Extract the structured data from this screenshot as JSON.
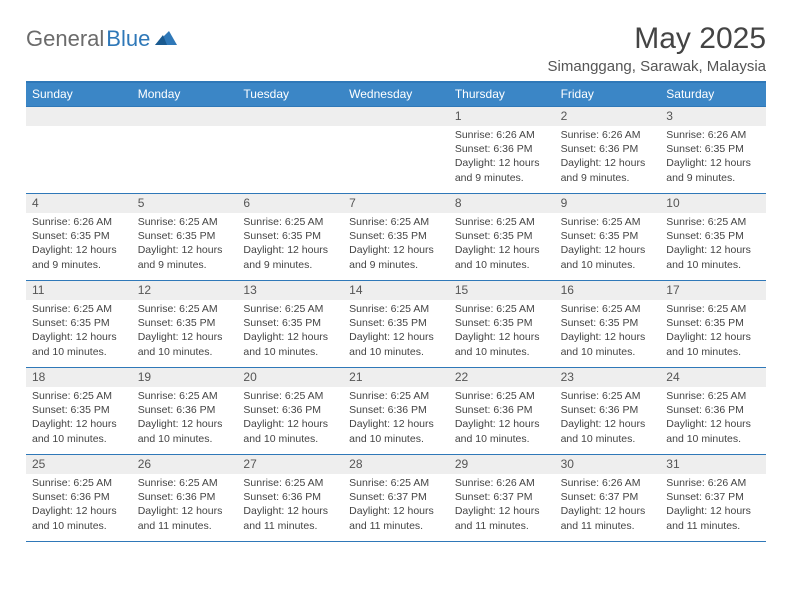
{
  "logo": {
    "part1": "General",
    "part2": "Blue"
  },
  "title": "May 2025",
  "location": "Simanggang, Sarawak, Malaysia",
  "colors": {
    "header_bg": "#3b86c6",
    "border": "#2f78b8",
    "daynum_bg": "#eeeeee",
    "text": "#444444"
  },
  "weekdays": [
    "Sunday",
    "Monday",
    "Tuesday",
    "Wednesday",
    "Thursday",
    "Friday",
    "Saturday"
  ],
  "weeks": [
    [
      {
        "num": "",
        "sunrise": "",
        "sunset": "",
        "daylight": ""
      },
      {
        "num": "",
        "sunrise": "",
        "sunset": "",
        "daylight": ""
      },
      {
        "num": "",
        "sunrise": "",
        "sunset": "",
        "daylight": ""
      },
      {
        "num": "",
        "sunrise": "",
        "sunset": "",
        "daylight": ""
      },
      {
        "num": "1",
        "sunrise": "Sunrise: 6:26 AM",
        "sunset": "Sunset: 6:36 PM",
        "daylight": "Daylight: 12 hours and 9 minutes."
      },
      {
        "num": "2",
        "sunrise": "Sunrise: 6:26 AM",
        "sunset": "Sunset: 6:36 PM",
        "daylight": "Daylight: 12 hours and 9 minutes."
      },
      {
        "num": "3",
        "sunrise": "Sunrise: 6:26 AM",
        "sunset": "Sunset: 6:35 PM",
        "daylight": "Daylight: 12 hours and 9 minutes."
      }
    ],
    [
      {
        "num": "4",
        "sunrise": "Sunrise: 6:26 AM",
        "sunset": "Sunset: 6:35 PM",
        "daylight": "Daylight: 12 hours and 9 minutes."
      },
      {
        "num": "5",
        "sunrise": "Sunrise: 6:25 AM",
        "sunset": "Sunset: 6:35 PM",
        "daylight": "Daylight: 12 hours and 9 minutes."
      },
      {
        "num": "6",
        "sunrise": "Sunrise: 6:25 AM",
        "sunset": "Sunset: 6:35 PM",
        "daylight": "Daylight: 12 hours and 9 minutes."
      },
      {
        "num": "7",
        "sunrise": "Sunrise: 6:25 AM",
        "sunset": "Sunset: 6:35 PM",
        "daylight": "Daylight: 12 hours and 9 minutes."
      },
      {
        "num": "8",
        "sunrise": "Sunrise: 6:25 AM",
        "sunset": "Sunset: 6:35 PM",
        "daylight": "Daylight: 12 hours and 10 minutes."
      },
      {
        "num": "9",
        "sunrise": "Sunrise: 6:25 AM",
        "sunset": "Sunset: 6:35 PM",
        "daylight": "Daylight: 12 hours and 10 minutes."
      },
      {
        "num": "10",
        "sunrise": "Sunrise: 6:25 AM",
        "sunset": "Sunset: 6:35 PM",
        "daylight": "Daylight: 12 hours and 10 minutes."
      }
    ],
    [
      {
        "num": "11",
        "sunrise": "Sunrise: 6:25 AM",
        "sunset": "Sunset: 6:35 PM",
        "daylight": "Daylight: 12 hours and 10 minutes."
      },
      {
        "num": "12",
        "sunrise": "Sunrise: 6:25 AM",
        "sunset": "Sunset: 6:35 PM",
        "daylight": "Daylight: 12 hours and 10 minutes."
      },
      {
        "num": "13",
        "sunrise": "Sunrise: 6:25 AM",
        "sunset": "Sunset: 6:35 PM",
        "daylight": "Daylight: 12 hours and 10 minutes."
      },
      {
        "num": "14",
        "sunrise": "Sunrise: 6:25 AM",
        "sunset": "Sunset: 6:35 PM",
        "daylight": "Daylight: 12 hours and 10 minutes."
      },
      {
        "num": "15",
        "sunrise": "Sunrise: 6:25 AM",
        "sunset": "Sunset: 6:35 PM",
        "daylight": "Daylight: 12 hours and 10 minutes."
      },
      {
        "num": "16",
        "sunrise": "Sunrise: 6:25 AM",
        "sunset": "Sunset: 6:35 PM",
        "daylight": "Daylight: 12 hours and 10 minutes."
      },
      {
        "num": "17",
        "sunrise": "Sunrise: 6:25 AM",
        "sunset": "Sunset: 6:35 PM",
        "daylight": "Daylight: 12 hours and 10 minutes."
      }
    ],
    [
      {
        "num": "18",
        "sunrise": "Sunrise: 6:25 AM",
        "sunset": "Sunset: 6:35 PM",
        "daylight": "Daylight: 12 hours and 10 minutes."
      },
      {
        "num": "19",
        "sunrise": "Sunrise: 6:25 AM",
        "sunset": "Sunset: 6:36 PM",
        "daylight": "Daylight: 12 hours and 10 minutes."
      },
      {
        "num": "20",
        "sunrise": "Sunrise: 6:25 AM",
        "sunset": "Sunset: 6:36 PM",
        "daylight": "Daylight: 12 hours and 10 minutes."
      },
      {
        "num": "21",
        "sunrise": "Sunrise: 6:25 AM",
        "sunset": "Sunset: 6:36 PM",
        "daylight": "Daylight: 12 hours and 10 minutes."
      },
      {
        "num": "22",
        "sunrise": "Sunrise: 6:25 AM",
        "sunset": "Sunset: 6:36 PM",
        "daylight": "Daylight: 12 hours and 10 minutes."
      },
      {
        "num": "23",
        "sunrise": "Sunrise: 6:25 AM",
        "sunset": "Sunset: 6:36 PM",
        "daylight": "Daylight: 12 hours and 10 minutes."
      },
      {
        "num": "24",
        "sunrise": "Sunrise: 6:25 AM",
        "sunset": "Sunset: 6:36 PM",
        "daylight": "Daylight: 12 hours and 10 minutes."
      }
    ],
    [
      {
        "num": "25",
        "sunrise": "Sunrise: 6:25 AM",
        "sunset": "Sunset: 6:36 PM",
        "daylight": "Daylight: 12 hours and 10 minutes."
      },
      {
        "num": "26",
        "sunrise": "Sunrise: 6:25 AM",
        "sunset": "Sunset: 6:36 PM",
        "daylight": "Daylight: 12 hours and 11 minutes."
      },
      {
        "num": "27",
        "sunrise": "Sunrise: 6:25 AM",
        "sunset": "Sunset: 6:36 PM",
        "daylight": "Daylight: 12 hours and 11 minutes."
      },
      {
        "num": "28",
        "sunrise": "Sunrise: 6:25 AM",
        "sunset": "Sunset: 6:37 PM",
        "daylight": "Daylight: 12 hours and 11 minutes."
      },
      {
        "num": "29",
        "sunrise": "Sunrise: 6:26 AM",
        "sunset": "Sunset: 6:37 PM",
        "daylight": "Daylight: 12 hours and 11 minutes."
      },
      {
        "num": "30",
        "sunrise": "Sunrise: 6:26 AM",
        "sunset": "Sunset: 6:37 PM",
        "daylight": "Daylight: 12 hours and 11 minutes."
      },
      {
        "num": "31",
        "sunrise": "Sunrise: 6:26 AM",
        "sunset": "Sunset: 6:37 PM",
        "daylight": "Daylight: 12 hours and 11 minutes."
      }
    ]
  ]
}
